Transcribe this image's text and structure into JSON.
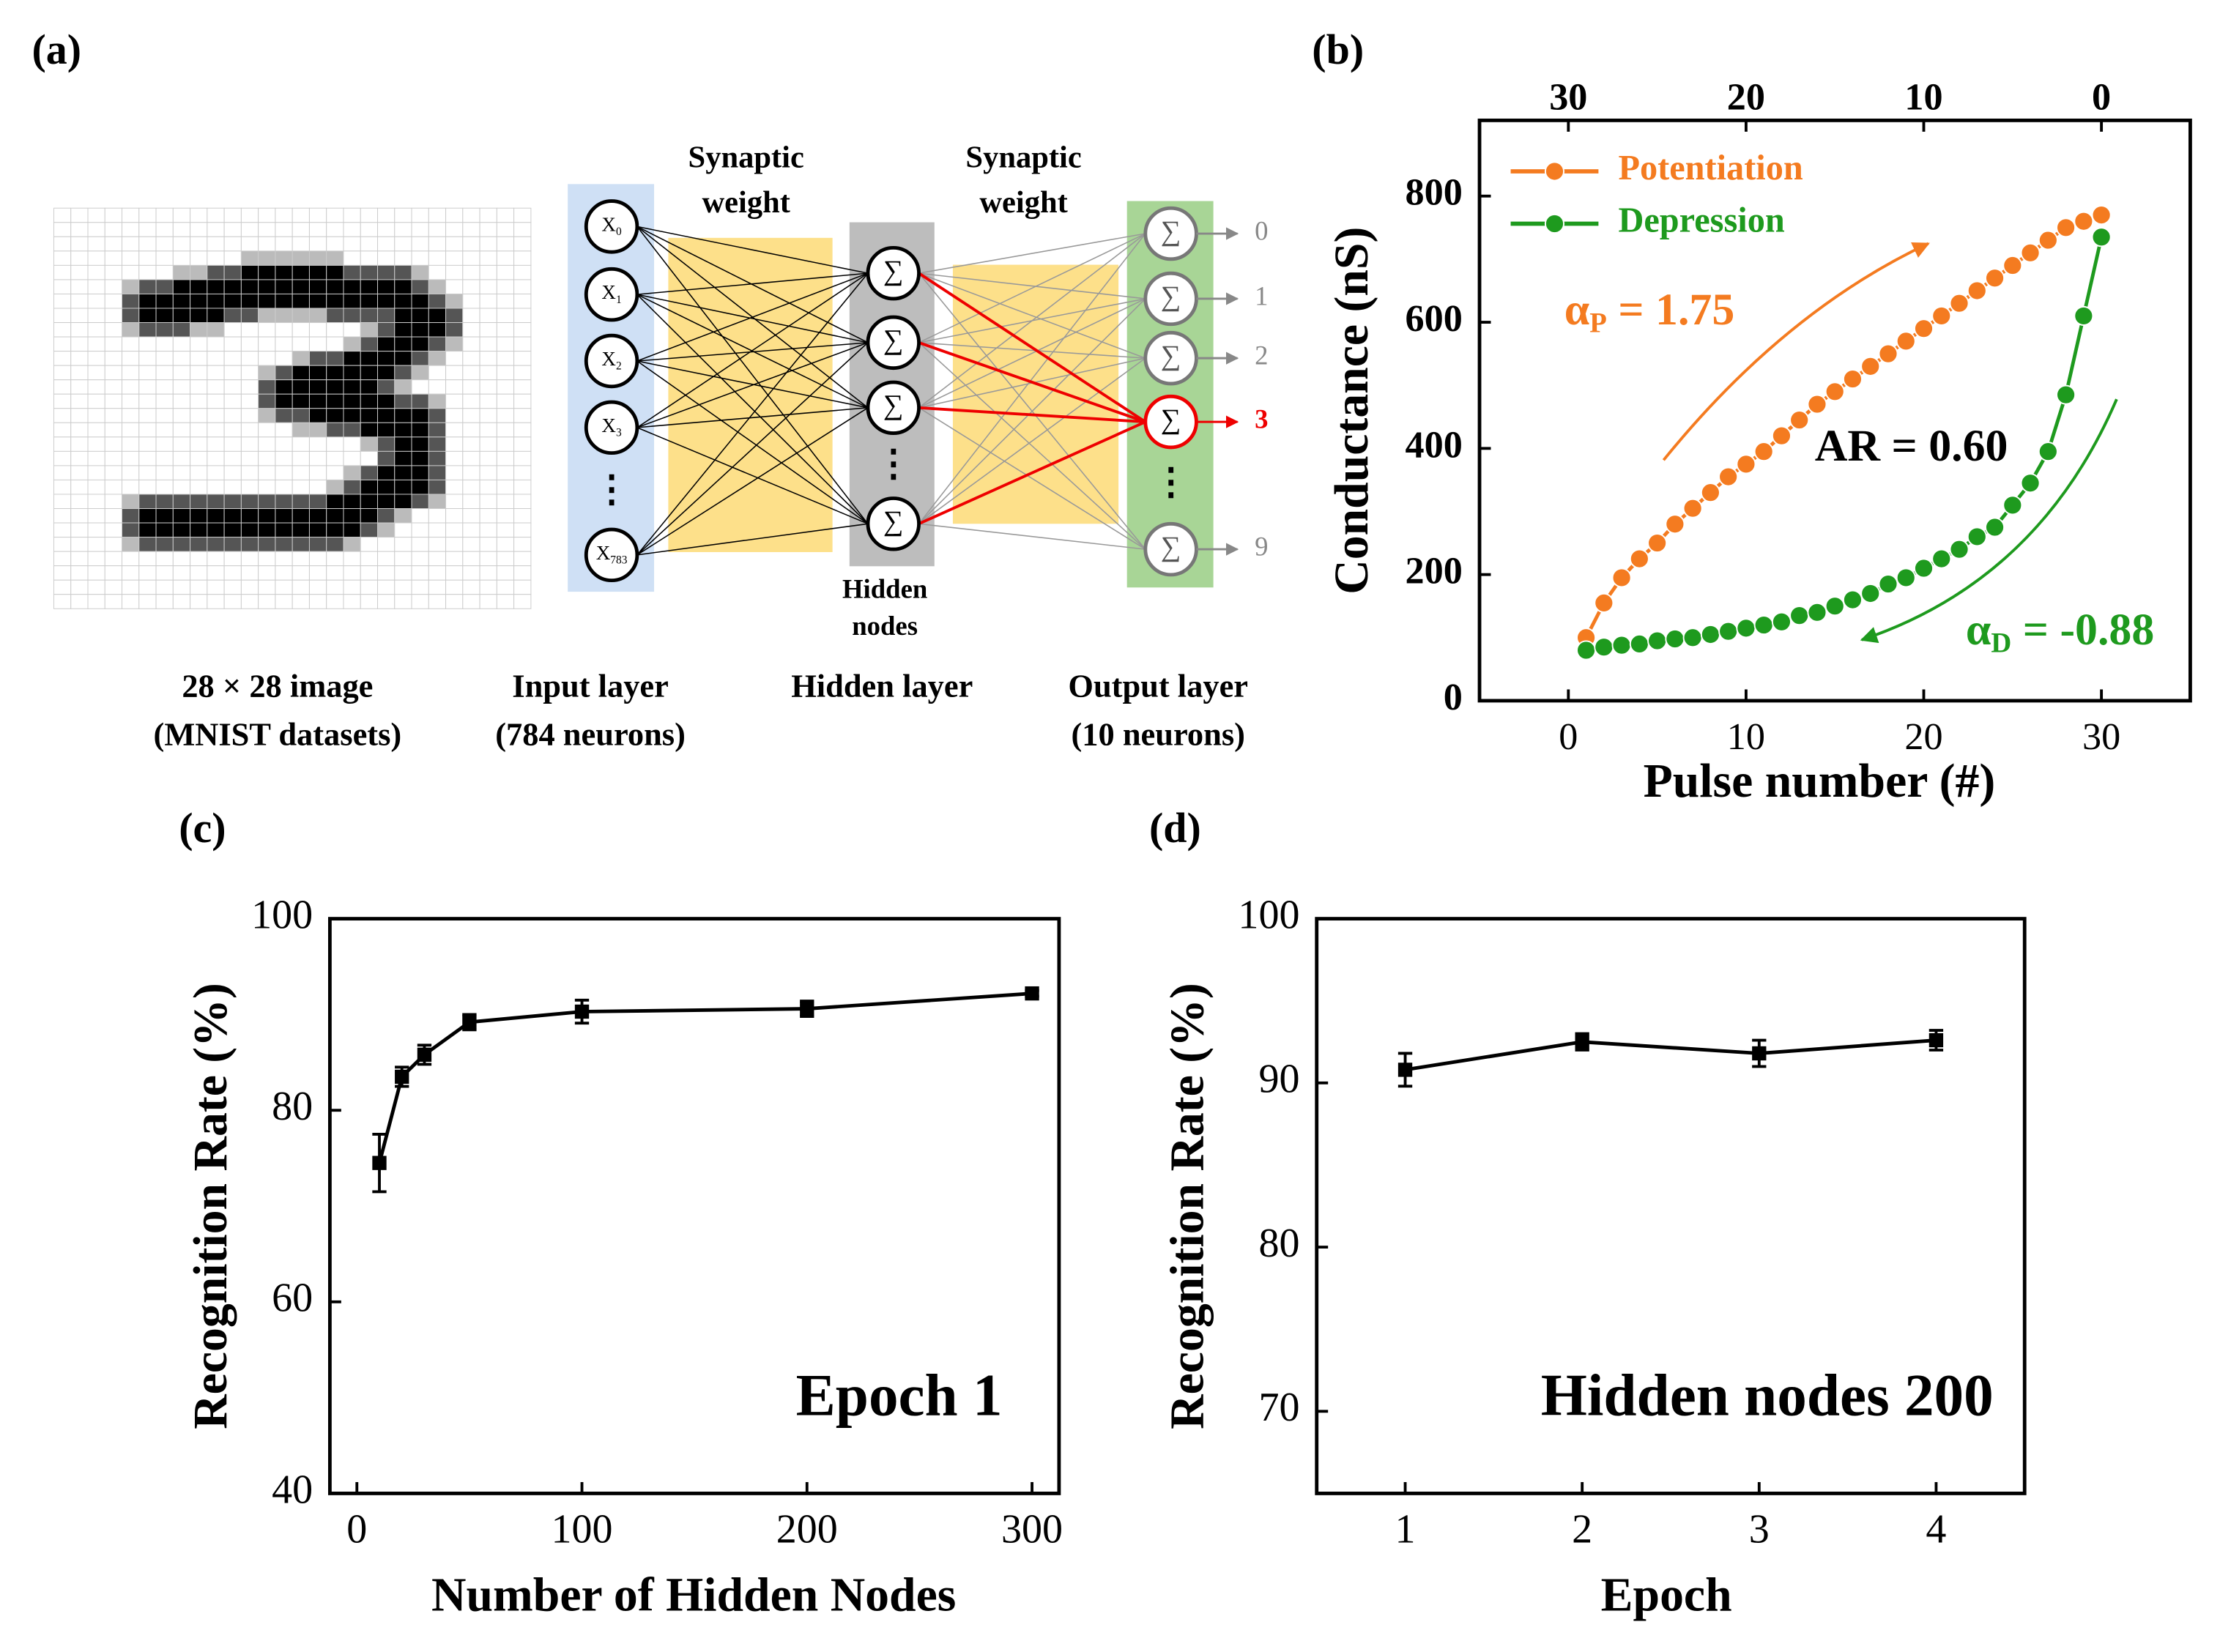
{
  "diagram": {
    "panel_label": "(a)",
    "input_nodes": [
      {
        "base": "X",
        "sub": "0"
      },
      {
        "base": "X",
        "sub": "1"
      },
      {
        "base": "X",
        "sub": "2"
      },
      {
        "base": "X",
        "sub": "3"
      },
      {
        "base": "X",
        "sub": "783"
      }
    ],
    "ellipsis": "⋮",
    "sum_symbol": "∑",
    "output_labels": [
      "0",
      "1",
      "2",
      "3",
      "9"
    ],
    "weight_label": [
      "Synaptic",
      "weight"
    ],
    "hidden_nodes_label": [
      "Hidden",
      "nodes"
    ],
    "captions": [
      [
        "28 × 28 image",
        "(MNIST datasets)"
      ],
      [
        "Input layer",
        "(784 neurons)"
      ],
      [
        "Hidden layer"
      ],
      [
        "Output layer",
        "(10 neurons)"
      ]
    ]
  },
  "chart_data": [
    {
      "type": "line",
      "panel_label": "(b)",
      "xlabel": "Pulse number (#)",
      "ylabel": "Conductance (nS)",
      "x": [
        1,
        2,
        3,
        4,
        5,
        6,
        7,
        8,
        9,
        10,
        11,
        12,
        13,
        14,
        15,
        16,
        17,
        18,
        19,
        20,
        21,
        22,
        23,
        24,
        25,
        26,
        27,
        28,
        29,
        30
      ],
      "xlim": [
        -5,
        35
      ],
      "xticks": [
        0,
        10,
        20,
        30
      ],
      "x2lim": [
        35,
        -5
      ],
      "x2ticks": [
        30,
        20,
        10,
        0
      ],
      "ylim": [
        0,
        920
      ],
      "yticks": [
        0,
        200,
        400,
        600,
        800
      ],
      "legend": "upper left",
      "series": [
        {
          "name": "Potentiation",
          "color": "#f47b20",
          "values": [
            100,
            155,
            195,
            225,
            250,
            280,
            305,
            330,
            355,
            375,
            395,
            420,
            445,
            470,
            490,
            510,
            530,
            550,
            570,
            590,
            610,
            630,
            650,
            670,
            690,
            710,
            730,
            750,
            760,
            770
          ]
        },
        {
          "name": "Depression",
          "color": "#1e9a1e",
          "values": [
            80,
            85,
            88,
            90,
            95,
            98,
            100,
            105,
            110,
            115,
            120,
            125,
            135,
            140,
            150,
            160,
            170,
            185,
            195,
            210,
            225,
            240,
            260,
            275,
            310,
            345,
            395,
            485,
            610,
            735
          ]
        }
      ],
      "annotations": [
        {
          "parts": [
            "α",
            "P",
            " = 1.75"
          ],
          "color": "#f47b20"
        },
        {
          "parts": [
            "AR = 0.60"
          ],
          "color": "#000000"
        },
        {
          "parts": [
            "α",
            "D",
            " = -0.88"
          ],
          "color": "#1e9a1e"
        }
      ]
    },
    {
      "type": "line",
      "panel_label": "(c)",
      "xlabel": "Number of Hidden Nodes",
      "ylabel": "Recognition Rate (%)",
      "annotation": "Epoch 1",
      "x": [
        10,
        20,
        30,
        50,
        100,
        200,
        300
      ],
      "values": [
        74.5,
        83.5,
        85.8,
        89.2,
        90.3,
        90.6,
        92.2
      ],
      "errors": [
        3,
        1,
        1,
        0.8,
        1.2,
        0.8,
        0.3
      ],
      "color": "#000000",
      "xlim": [
        -12,
        312
      ],
      "xticks": [
        0,
        100,
        200,
        300
      ],
      "ylim": [
        40,
        100
      ],
      "yticks": [
        40,
        60,
        80,
        100
      ]
    },
    {
      "type": "line",
      "panel_label": "(d)",
      "xlabel": "Epoch",
      "ylabel": "Recognition Rate (%)",
      "annotation": "Hidden nodes 200",
      "x": [
        1,
        2,
        3,
        4
      ],
      "values": [
        90.8,
        92.5,
        91.8,
        92.6
      ],
      "errors": [
        1,
        0.5,
        0.8,
        0.6
      ],
      "color": "#000000",
      "xlim": [
        0.5,
        4.5
      ],
      "xticks": [
        1,
        2,
        3,
        4
      ],
      "ylim": [
        65,
        100
      ],
      "yticks": [
        70,
        80,
        90,
        100
      ]
    }
  ]
}
